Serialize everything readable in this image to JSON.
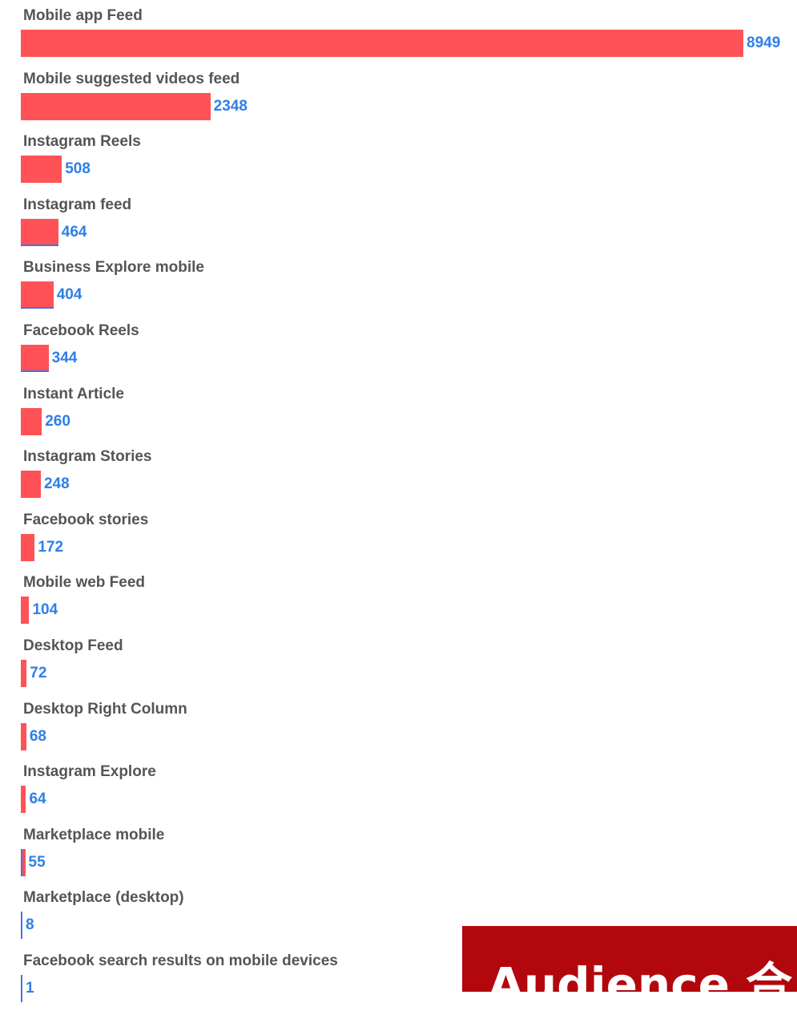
{
  "chart_data": {
    "type": "bar",
    "orientation": "horizontal",
    "categories": [
      "Mobile app Feed",
      "Mobile suggested videos feed",
      "Instagram Reels",
      "Instagram feed",
      "Business Explore mobile",
      "Facebook Reels",
      "Instant Article",
      "Instagram Stories",
      "Facebook stories",
      "Mobile web Feed",
      "Desktop Feed",
      "Desktop Right Column",
      "Instagram Explore",
      "Marketplace mobile",
      "Marketplace (desktop)",
      "Facebook search results on mobile devices"
    ],
    "values": [
      8949,
      2348,
      508,
      464,
      404,
      344,
      260,
      248,
      172,
      104,
      72,
      68,
      64,
      55,
      8,
      1
    ],
    "value_labels": [
      "8949",
      "2348",
      "508",
      "464",
      "404",
      "344",
      "260",
      "248",
      "172",
      "104",
      "72",
      "68",
      "64",
      "55",
      "8",
      "1"
    ],
    "xlim": [
      0,
      8949
    ],
    "grid": false,
    "bar_color": "#ff5257",
    "value_label_color": "#2f7fe8",
    "category_label_color": "#555555"
  },
  "banner": {
    "text": "Audience 合",
    "background_color": "#b3070e"
  }
}
